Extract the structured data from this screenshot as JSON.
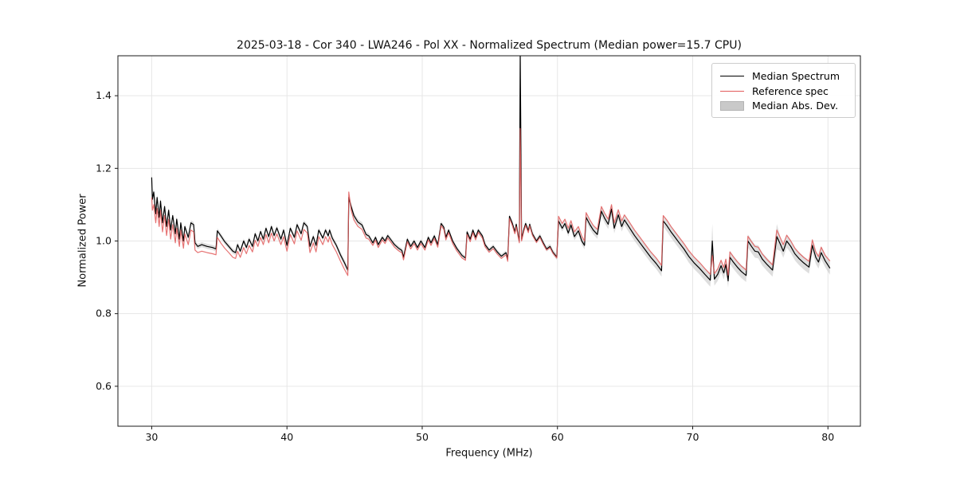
{
  "title": "2025-03-18 - Cor 340 - LWA246 - Pol XX - Normalized Spectrum (Median power=15.7 CPU)",
  "axes": {
    "xlabel": "Frequency (MHz)",
    "ylabel": "Normalized Power"
  },
  "legend": {
    "items": [
      {
        "label": "Median Spectrum",
        "type": "line",
        "color": "#000000"
      },
      {
        "label": "Reference spec",
        "type": "line",
        "color": "#e25a5a"
      },
      {
        "label": "Median Abs. Dev.",
        "type": "patch",
        "color": "#c9c9c9"
      }
    ]
  },
  "chart_data": {
    "type": "line",
    "title": "2025-03-18 - Cor 340 - LWA246 - Pol XX - Normalized Spectrum (Median power=15.7 CPU)",
    "xlabel": "Frequency (MHz)",
    "ylabel": "Normalized Power",
    "xlim": [
      27.5,
      82.4
    ],
    "ylim": [
      0.49,
      1.51
    ],
    "xticks": [
      30,
      40,
      50,
      60,
      70,
      80
    ],
    "yticks": [
      0.6,
      0.8,
      1.0,
      1.2,
      1.4
    ],
    "grid": true,
    "legend_position": "upper right",
    "colors": {
      "median": "#000000",
      "reference": "#e25a5a",
      "mad_band": "#c8c8c8",
      "grid": "#e6e6e6",
      "frame": "#1a1a1a"
    },
    "series_meta": [
      {
        "name": "Median Spectrum",
        "style": "line",
        "color": "#000000"
      },
      {
        "name": "Reference spec",
        "style": "line",
        "color": "#e25a5a",
        "opacity": 0.85
      },
      {
        "name": "Median Abs. Dev.",
        "style": "band around median",
        "color": "#c8c8c8",
        "opacity": 0.6
      }
    ],
    "points_format": [
      "frequency_mhz",
      "median_spectrum",
      "reference_spec",
      "median_abs_dev_halfwidth"
    ],
    "points": [
      [
        30.0,
        1.175,
        1.12,
        0.012
      ],
      [
        30.05,
        1.115,
        1.085,
        0.01
      ],
      [
        30.15,
        1.135,
        1.1,
        0.01
      ],
      [
        30.3,
        1.075,
        1.05,
        0.009
      ],
      [
        30.4,
        1.12,
        1.09,
        0.009
      ],
      [
        30.55,
        1.065,
        1.04,
        0.009
      ],
      [
        30.65,
        1.11,
        1.085,
        0.009
      ],
      [
        30.8,
        1.05,
        1.025,
        0.008
      ],
      [
        30.95,
        1.095,
        1.07,
        0.008
      ],
      [
        31.1,
        1.04,
        1.015,
        0.008
      ],
      [
        31.25,
        1.085,
        1.06,
        0.008
      ],
      [
        31.4,
        1.03,
        1.005,
        0.008
      ],
      [
        31.55,
        1.07,
        1.045,
        0.008
      ],
      [
        31.75,
        1.02,
        0.995,
        0.008
      ],
      [
        31.85,
        1.06,
        1.035,
        0.008
      ],
      [
        32.05,
        1.005,
        0.985,
        0.008
      ],
      [
        32.15,
        1.05,
        1.03,
        0.008
      ],
      [
        32.35,
        1.0,
        0.98,
        0.007
      ],
      [
        32.45,
        1.04,
        1.02,
        0.007
      ],
      [
        32.7,
        1.01,
        0.99,
        0.007
      ],
      [
        32.9,
        1.05,
        1.03,
        0.007
      ],
      [
        33.1,
        1.045,
        1.025,
        0.007
      ],
      [
        33.2,
        0.995,
        0.975,
        0.007
      ],
      [
        33.4,
        0.985,
        0.968,
        0.007
      ],
      [
        33.7,
        0.99,
        0.972,
        0.007
      ],
      [
        34.1,
        0.985,
        0.968,
        0.007
      ],
      [
        34.5,
        0.982,
        0.965,
        0.007
      ],
      [
        34.75,
        0.978,
        0.962,
        0.007
      ],
      [
        34.85,
        1.028,
        1.01,
        0.007
      ],
      [
        35.1,
        1.015,
        0.995,
        0.007
      ],
      [
        35.4,
        0.998,
        0.98,
        0.007
      ],
      [
        35.7,
        0.985,
        0.968,
        0.007
      ],
      [
        36.0,
        0.972,
        0.955,
        0.007
      ],
      [
        36.2,
        0.968,
        0.952,
        0.007
      ],
      [
        36.35,
        0.99,
        0.972,
        0.007
      ],
      [
        36.55,
        0.972,
        0.955,
        0.007
      ],
      [
        36.8,
        1.0,
        0.982,
        0.007
      ],
      [
        37.0,
        0.982,
        0.965,
        0.007
      ],
      [
        37.2,
        1.005,
        0.988,
        0.007
      ],
      [
        37.45,
        0.985,
        0.97,
        0.007
      ],
      [
        37.65,
        1.02,
        1.002,
        0.007
      ],
      [
        37.85,
        1.0,
        0.985,
        0.007
      ],
      [
        38.05,
        1.026,
        1.01,
        0.007
      ],
      [
        38.25,
        1.005,
        0.99,
        0.007
      ],
      [
        38.45,
        1.035,
        1.018,
        0.007
      ],
      [
        38.65,
        1.012,
        0.995,
        0.007
      ],
      [
        38.85,
        1.04,
        1.022,
        0.007
      ],
      [
        39.05,
        1.015,
        1.0,
        0.007
      ],
      [
        39.25,
        1.036,
        1.02,
        0.007
      ],
      [
        39.55,
        1.005,
        0.99,
        0.007
      ],
      [
        39.75,
        1.03,
        1.012,
        0.007
      ],
      [
        40.0,
        0.988,
        0.972,
        0.007
      ],
      [
        40.25,
        1.035,
        1.018,
        0.007
      ],
      [
        40.55,
        1.01,
        0.992,
        0.007
      ],
      [
        40.75,
        1.045,
        1.028,
        0.007
      ],
      [
        41.05,
        1.02,
        1.002,
        0.007
      ],
      [
        41.25,
        1.05,
        1.032,
        0.007
      ],
      [
        41.5,
        1.04,
        1.022,
        0.007
      ],
      [
        41.7,
        0.985,
        0.968,
        0.007
      ],
      [
        41.95,
        1.012,
        0.995,
        0.007
      ],
      [
        42.15,
        0.988,
        0.97,
        0.007
      ],
      [
        42.35,
        1.03,
        1.012,
        0.007
      ],
      [
        42.65,
        1.008,
        0.99,
        0.007
      ],
      [
        42.85,
        1.03,
        1.012,
        0.007
      ],
      [
        43.05,
        1.014,
        0.997,
        0.007
      ],
      [
        43.15,
        1.03,
        1.012,
        0.007
      ],
      [
        43.35,
        1.008,
        0.99,
        0.007
      ],
      [
        43.65,
        0.988,
        0.97,
        0.008
      ],
      [
        43.95,
        0.962,
        0.945,
        0.008
      ],
      [
        44.25,
        0.94,
        0.922,
        0.009
      ],
      [
        44.5,
        0.92,
        0.905,
        0.01
      ],
      [
        44.57,
        1.12,
        1.135,
        0.01
      ],
      [
        44.75,
        1.095,
        1.085,
        0.009
      ],
      [
        44.95,
        1.07,
        1.058,
        0.009
      ],
      [
        45.25,
        1.052,
        1.04,
        0.008
      ],
      [
        45.55,
        1.044,
        1.032,
        0.008
      ],
      [
        45.85,
        1.018,
        1.008,
        0.007
      ],
      [
        46.05,
        1.014,
        1.005,
        0.007
      ],
      [
        46.35,
        0.995,
        0.988,
        0.006
      ],
      [
        46.55,
        1.01,
        1.002,
        0.006
      ],
      [
        46.75,
        0.99,
        0.982,
        0.006
      ],
      [
        47.05,
        1.01,
        1.003,
        0.006
      ],
      [
        47.25,
        1.0,
        0.993,
        0.006
      ],
      [
        47.45,
        1.015,
        1.008,
        0.006
      ],
      [
        47.65,
        1.005,
        0.998,
        0.006
      ],
      [
        47.95,
        0.99,
        0.983,
        0.006
      ],
      [
        48.25,
        0.98,
        0.973,
        0.006
      ],
      [
        48.5,
        0.974,
        0.967,
        0.006
      ],
      [
        48.62,
        0.955,
        0.948,
        0.006
      ],
      [
        48.9,
        1.005,
        0.998,
        0.006
      ],
      [
        49.15,
        0.985,
        0.978,
        0.006
      ],
      [
        49.4,
        1.0,
        0.993,
        0.006
      ],
      [
        49.65,
        0.982,
        0.975,
        0.006
      ],
      [
        49.9,
        1.0,
        0.993,
        0.006
      ],
      [
        50.2,
        0.982,
        0.975,
        0.006
      ],
      [
        50.45,
        1.01,
        1.003,
        0.006
      ],
      [
        50.65,
        0.995,
        0.988,
        0.006
      ],
      [
        50.9,
        1.014,
        1.007,
        0.006
      ],
      [
        51.15,
        0.99,
        0.983,
        0.006
      ],
      [
        51.4,
        1.048,
        1.042,
        0.006
      ],
      [
        51.6,
        1.038,
        1.032,
        0.006
      ],
      [
        51.75,
        1.01,
        1.003,
        0.006
      ],
      [
        51.95,
        1.03,
        1.023,
        0.006
      ],
      [
        52.25,
        1.0,
        0.993,
        0.006
      ],
      [
        52.55,
        0.98,
        0.973,
        0.006
      ],
      [
        52.95,
        0.96,
        0.953,
        0.006
      ],
      [
        53.2,
        0.953,
        0.947,
        0.006
      ],
      [
        53.32,
        1.025,
        1.018,
        0.006
      ],
      [
        53.55,
        1.005,
        0.998,
        0.006
      ],
      [
        53.75,
        1.03,
        1.023,
        0.006
      ],
      [
        53.95,
        1.01,
        1.003,
        0.006
      ],
      [
        54.15,
        1.03,
        1.024,
        0.006
      ],
      [
        54.45,
        1.014,
        1.008,
        0.006
      ],
      [
        54.65,
        0.99,
        0.984,
        0.006
      ],
      [
        54.95,
        0.975,
        0.969,
        0.006
      ],
      [
        55.25,
        0.985,
        0.979,
        0.006
      ],
      [
        55.55,
        0.97,
        0.964,
        0.006
      ],
      [
        55.85,
        0.958,
        0.952,
        0.006
      ],
      [
        56.2,
        0.968,
        0.962,
        0.006
      ],
      [
        56.32,
        0.95,
        0.944,
        0.006
      ],
      [
        56.45,
        1.068,
        1.062,
        0.007
      ],
      [
        56.65,
        1.05,
        1.044,
        0.007
      ],
      [
        56.85,
        1.025,
        1.02,
        0.007
      ],
      [
        56.95,
        1.046,
        1.04,
        0.007
      ],
      [
        57.1,
        1.015,
        1.01,
        0.007
      ],
      [
        57.18,
        1.0,
        0.995,
        0.007
      ],
      [
        57.25,
        1.52,
        1.31,
        0.01
      ],
      [
        57.35,
        1.005,
        1.0,
        0.007
      ],
      [
        57.5,
        1.03,
        1.025,
        0.007
      ],
      [
        57.65,
        1.048,
        1.043,
        0.007
      ],
      [
        57.85,
        1.028,
        1.023,
        0.007
      ],
      [
        57.95,
        1.046,
        1.042,
        0.007
      ],
      [
        58.15,
        1.02,
        1.016,
        0.007
      ],
      [
        58.45,
        1.0,
        0.996,
        0.007
      ],
      [
        58.7,
        1.014,
        1.01,
        0.007
      ],
      [
        58.95,
        0.995,
        0.991,
        0.007
      ],
      [
        59.2,
        0.978,
        0.975,
        0.007
      ],
      [
        59.45,
        0.985,
        0.982,
        0.007
      ],
      [
        59.65,
        0.97,
        0.967,
        0.007
      ],
      [
        59.95,
        0.956,
        0.953,
        0.008
      ],
      [
        60.08,
        1.055,
        1.068,
        0.009
      ],
      [
        60.35,
        1.035,
        1.048,
        0.009
      ],
      [
        60.55,
        1.048,
        1.06,
        0.009
      ],
      [
        60.8,
        1.022,
        1.035,
        0.01
      ],
      [
        61.0,
        1.044,
        1.056,
        0.01
      ],
      [
        61.25,
        1.012,
        1.025,
        0.01
      ],
      [
        61.55,
        1.028,
        1.04,
        0.01
      ],
      [
        61.8,
        1.0,
        1.013,
        0.01
      ],
      [
        62.0,
        0.988,
        1.0,
        0.011
      ],
      [
        62.12,
        1.065,
        1.078,
        0.011
      ],
      [
        62.4,
        1.045,
        1.058,
        0.012
      ],
      [
        62.65,
        1.03,
        1.043,
        0.012
      ],
      [
        62.95,
        1.018,
        1.032,
        0.012
      ],
      [
        63.25,
        1.082,
        1.095,
        0.013
      ],
      [
        63.5,
        1.062,
        1.076,
        0.013
      ],
      [
        63.75,
        1.046,
        1.06,
        0.013
      ],
      [
        64.0,
        1.088,
        1.1,
        0.014
      ],
      [
        64.2,
        1.035,
        1.05,
        0.014
      ],
      [
        64.5,
        1.072,
        1.086,
        0.014
      ],
      [
        64.75,
        1.04,
        1.055,
        0.014
      ],
      [
        64.95,
        1.058,
        1.072,
        0.014
      ],
      [
        65.3,
        1.038,
        1.053,
        0.015
      ],
      [
        65.7,
        1.015,
        1.03,
        0.015
      ],
      [
        66.1,
        0.995,
        1.01,
        0.015
      ],
      [
        66.5,
        0.975,
        0.99,
        0.015
      ],
      [
        66.9,
        0.955,
        0.97,
        0.015
      ],
      [
        67.3,
        0.938,
        0.953,
        0.015
      ],
      [
        67.7,
        0.918,
        0.933,
        0.016
      ],
      [
        67.82,
        1.055,
        1.07,
        0.016
      ],
      [
        68.1,
        1.042,
        1.057,
        0.016
      ],
      [
        68.4,
        1.025,
        1.04,
        0.016
      ],
      [
        68.7,
        1.01,
        1.025,
        0.016
      ],
      [
        69.0,
        0.995,
        1.01,
        0.016
      ],
      [
        69.35,
        0.978,
        0.993,
        0.016
      ],
      [
        69.7,
        0.958,
        0.974,
        0.017
      ],
      [
        70.1,
        0.94,
        0.956,
        0.017
      ],
      [
        70.5,
        0.925,
        0.941,
        0.017
      ],
      [
        70.9,
        0.908,
        0.924,
        0.017
      ],
      [
        71.3,
        0.892,
        0.908,
        0.018
      ],
      [
        71.45,
        1.0,
        0.96,
        0.048
      ],
      [
        71.6,
        0.895,
        0.91,
        0.018
      ],
      [
        71.85,
        0.908,
        0.923,
        0.018
      ],
      [
        72.1,
        0.932,
        0.947,
        0.018
      ],
      [
        72.3,
        0.912,
        0.927,
        0.018
      ],
      [
        72.45,
        0.935,
        0.95,
        0.018
      ],
      [
        72.62,
        0.89,
        0.906,
        0.018
      ],
      [
        72.75,
        0.955,
        0.97,
        0.018
      ],
      [
        73.0,
        0.942,
        0.957,
        0.018
      ],
      [
        73.3,
        0.928,
        0.943,
        0.018
      ],
      [
        73.6,
        0.916,
        0.931,
        0.018
      ],
      [
        73.95,
        0.905,
        0.92,
        0.018
      ],
      [
        74.08,
        1.0,
        1.013,
        0.018
      ],
      [
        74.35,
        0.985,
        0.998,
        0.018
      ],
      [
        74.6,
        0.972,
        0.985,
        0.018
      ],
      [
        74.85,
        0.97,
        0.983,
        0.018
      ],
      [
        75.15,
        0.95,
        0.964,
        0.018
      ],
      [
        75.5,
        0.935,
        0.949,
        0.018
      ],
      [
        75.9,
        0.92,
        0.934,
        0.018
      ],
      [
        76.22,
        1.012,
        1.03,
        0.035
      ],
      [
        76.5,
        0.99,
        1.007,
        0.018
      ],
      [
        76.7,
        0.972,
        0.99,
        0.018
      ],
      [
        76.95,
        1.0,
        1.016,
        0.018
      ],
      [
        77.25,
        0.985,
        1.0,
        0.018
      ],
      [
        77.55,
        0.965,
        0.98,
        0.018
      ],
      [
        77.85,
        0.952,
        0.967,
        0.018
      ],
      [
        78.2,
        0.94,
        0.955,
        0.018
      ],
      [
        78.6,
        0.928,
        0.944,
        0.018
      ],
      [
        78.85,
        0.988,
        1.003,
        0.018
      ],
      [
        79.1,
        0.955,
        0.97,
        0.018
      ],
      [
        79.3,
        0.942,
        0.957,
        0.018
      ],
      [
        79.5,
        0.968,
        0.983,
        0.018
      ],
      [
        79.8,
        0.945,
        0.96,
        0.018
      ],
      [
        80.15,
        0.925,
        0.945,
        0.018
      ]
    ]
  }
}
